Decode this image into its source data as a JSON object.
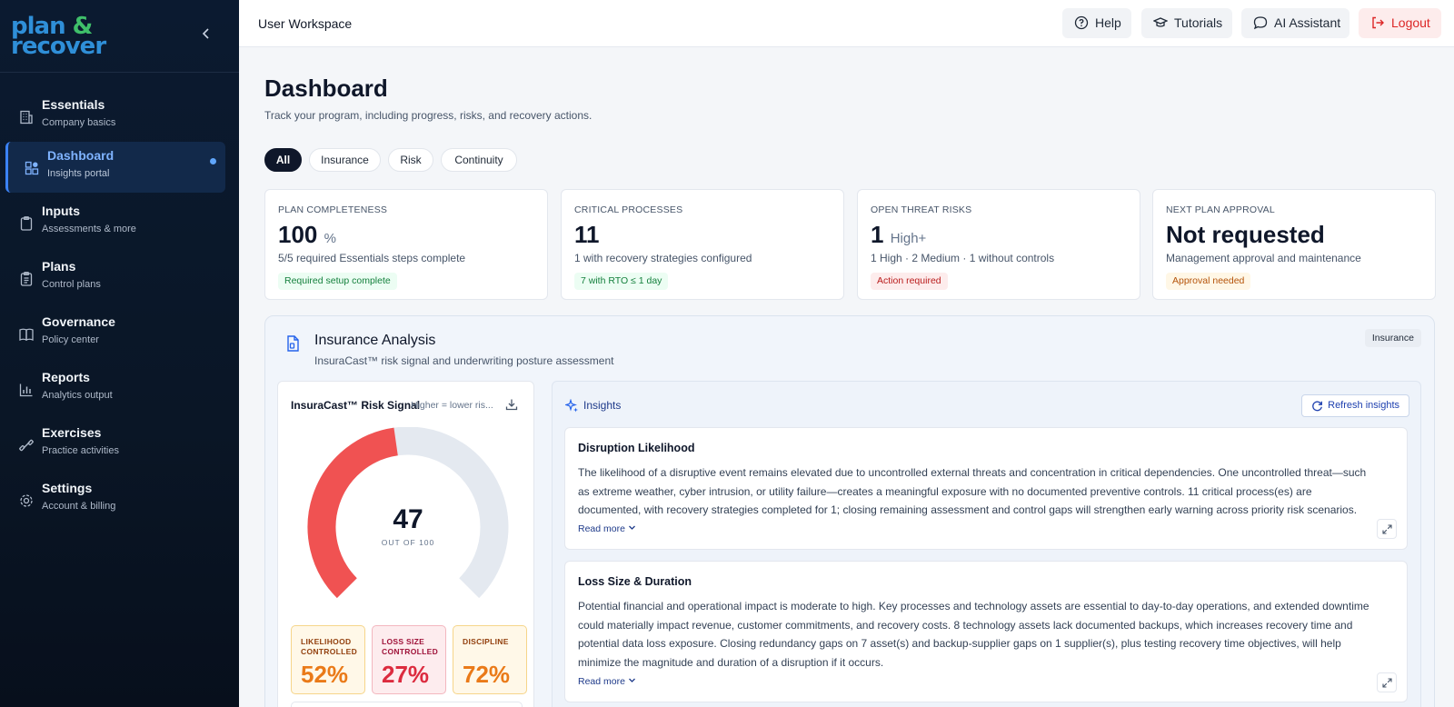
{
  "brand": {
    "line1": "plan",
    "amp": "&",
    "line2": "recover"
  },
  "sidebar": {
    "items": [
      {
        "title": "Essentials",
        "sub": "Company basics",
        "icon": "building-icon"
      },
      {
        "title": "Dashboard",
        "sub": "Insights portal",
        "icon": "dashboard-icon",
        "active": true
      },
      {
        "title": "Inputs",
        "sub": "Assessments & more",
        "icon": "clipboard-icon"
      },
      {
        "title": "Plans",
        "sub": "Control plans",
        "icon": "clipboard-list-icon"
      },
      {
        "title": "Governance",
        "sub": "Policy center",
        "icon": "book-icon"
      },
      {
        "title": "Reports",
        "sub": "Analytics output",
        "icon": "bar-chart-icon"
      },
      {
        "title": "Exercises",
        "sub": "Practice activities",
        "icon": "dumbbell-icon"
      },
      {
        "title": "Settings",
        "sub": "Account & billing",
        "icon": "gear-icon"
      }
    ]
  },
  "topbar": {
    "workspace": "User Workspace",
    "help": "Help",
    "tutorials": "Tutorials",
    "ai": "AI Assistant",
    "logout": "Logout"
  },
  "page": {
    "title": "Dashboard",
    "subtitle": "Track your program, including progress, risks, and recovery actions.",
    "filters": [
      "All",
      "Insurance",
      "Risk",
      "Continuity"
    ]
  },
  "stats": [
    {
      "label": "PLAN COMPLETENESS",
      "value": "100",
      "unit": "%",
      "desc": "5/5 required Essentials steps complete",
      "badge": "Required setup complete",
      "tone": "green"
    },
    {
      "label": "CRITICAL PROCESSES",
      "value": "11",
      "unit": "",
      "desc": "1 with recovery strategies configured",
      "badge": "7 with RTO ≤ 1 day",
      "tone": "green"
    },
    {
      "label": "OPEN THREAT RISKS",
      "value": "1",
      "unit": "High+",
      "desc": "1 High · 2 Medium · 1 without controls",
      "badge": "Action required",
      "tone": "red"
    },
    {
      "label": "NEXT PLAN APPROVAL",
      "value": "Not requested",
      "unit": "",
      "desc": "Management approval and maintenance",
      "badge": "Approval needed",
      "tone": "amber"
    }
  ],
  "insurance": {
    "title": "Insurance Analysis",
    "subtitle": "InsuraCast™ risk signal and underwriting posture assessment",
    "tag": "Insurance",
    "signal": {
      "title": "InsuraCast™ Risk Signal",
      "hint": "Higher = lower ris...",
      "score": "47",
      "score_value": 47,
      "score_max": 100,
      "caption": "OUT OF 100",
      "gauge_color": "#f05252",
      "track_color": "#e4e9f0"
    },
    "metrics": [
      {
        "label1": "LIKELIHOOD",
        "label2": "CONTROLLED",
        "value": "52%"
      },
      {
        "label1": "LOSS SIZE",
        "label2": "CONTROLLED",
        "value": "27%"
      },
      {
        "label1": "DISCIPLINE",
        "label2": "",
        "value": "72%"
      }
    ],
    "insights": {
      "title": "Insights",
      "refresh": "Refresh insights",
      "cards": [
        {
          "title": "Disruption Likelihood",
          "body": "The likelihood of a disruptive event remains elevated due to uncontrolled external threats and concentration in critical dependencies. One uncontrolled threat—such as extreme weather, cyber intrusion, or utility failure—creates a meaningful exposure with no documented preventive controls. 11 critical process(es) are documented, with recovery strategies completed for 1; closing remaining assessment and control gaps will strengthen early warning across priority risk scenarios.",
          "more": "Read more"
        },
        {
          "title": "Loss Size & Duration",
          "body": "Potential financial and operational impact is moderate to high. Key processes and technology assets are essential to day-to-day operations, and extended downtime could materially impact revenue, customer commitments, and recovery costs. 8 technology assets lack documented backups, which increases recovery time and potential data loss exposure. Closing redundancy gaps on 7 asset(s) and backup-supplier gaps on 1 supplier(s), plus testing recovery time objectives, will help minimize the magnitude and duration of a disruption if it occurs.",
          "more": "Read more"
        }
      ]
    }
  }
}
